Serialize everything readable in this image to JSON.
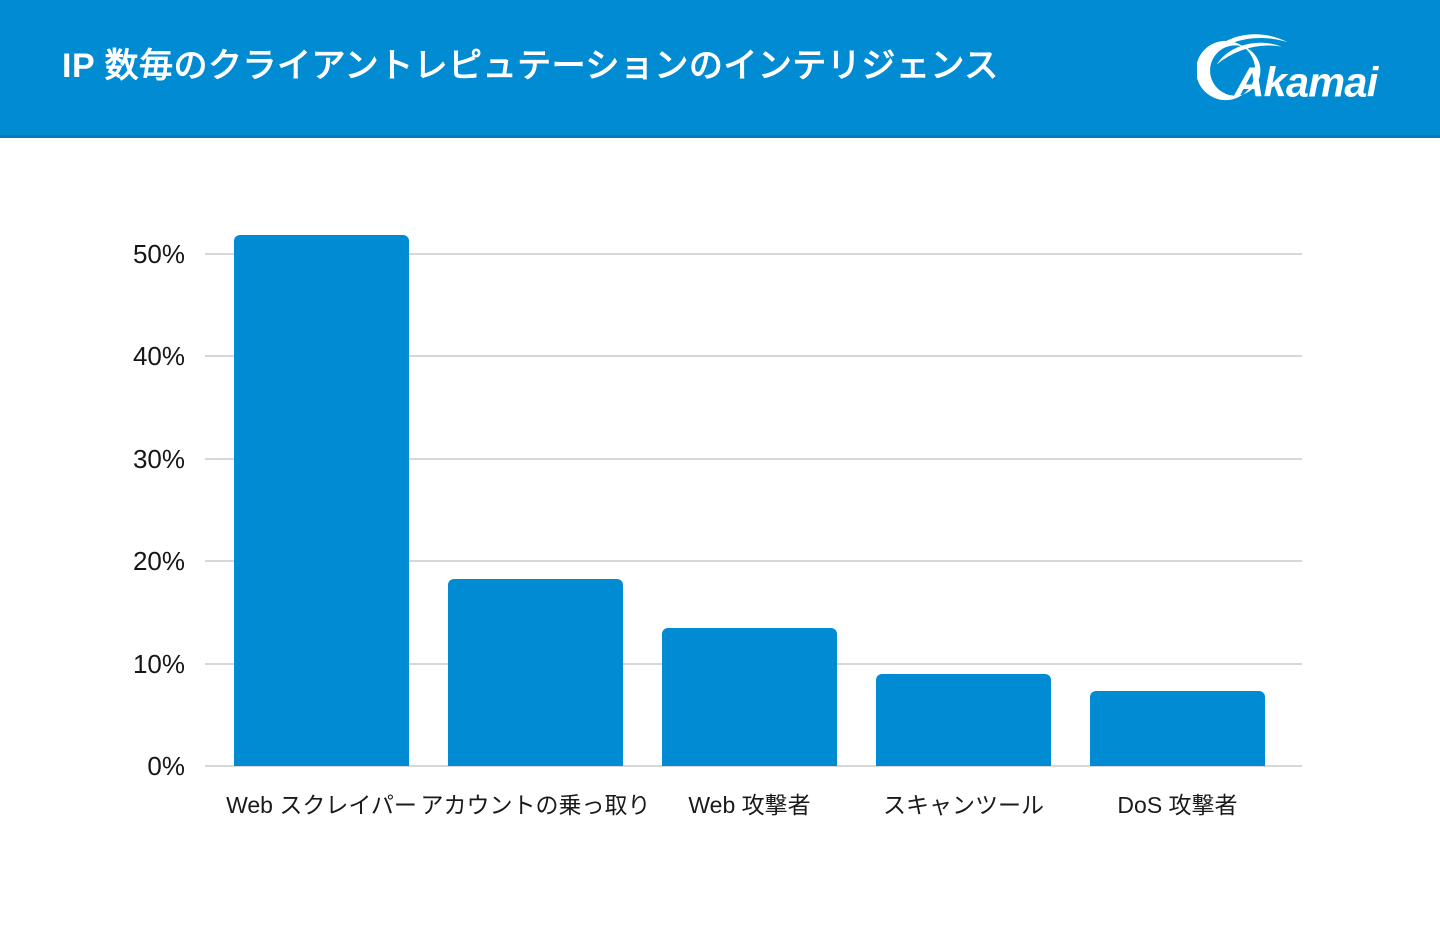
{
  "header": {
    "title": "IP 数毎のクライアントレピュテーションのインテリジェンス",
    "logo_text": "Akamai"
  },
  "colors": {
    "header_bg": "#018BD2",
    "header_edge": "#0179BC",
    "bar": "#018BD2",
    "gridline": "#D7D7D7",
    "axis_text": "#161616",
    "title_text": "#FFFFFF"
  },
  "chart_data": {
    "type": "bar",
    "title": "IP 数毎のクライアントレピュテーションのインテリジェンス",
    "categories": [
      "Web スクレイパー",
      "アカウントの乗っ取り",
      "Web 攻撃者",
      "スキャンツール",
      "DoS 攻撃者"
    ],
    "values": [
      51.8,
      18.2,
      13.5,
      9.0,
      7.3
    ],
    "xlabel": "",
    "ylabel": "",
    "ylim": [
      0,
      52
    ],
    "yticks": [
      0,
      10,
      20,
      30,
      40,
      50
    ],
    "ytick_labels": [
      "0%",
      "10%",
      "20%",
      "30%",
      "40%",
      "50%"
    ],
    "grid": true,
    "legend": false,
    "bar_color": "#018BD2"
  }
}
